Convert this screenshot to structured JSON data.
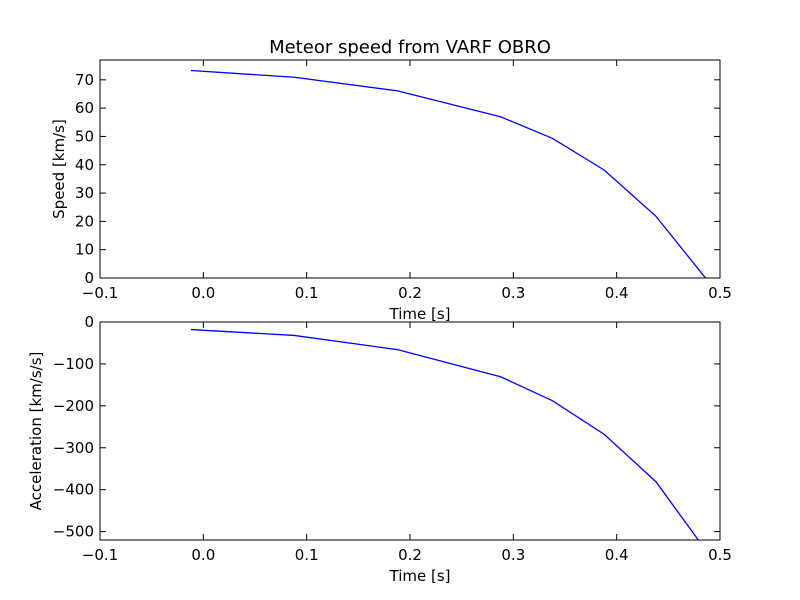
{
  "title": "Meteor speed from  VARF OBRO",
  "chart_data": [
    {
      "type": "line",
      "title": "Meteor speed from  VARF OBRO",
      "xlabel": "Time [s]",
      "ylabel": "Speed [km/s]",
      "xlim": [
        -0.1,
        0.5
      ],
      "ylim": [
        0,
        77
      ],
      "grid": false,
      "x_ticks": [
        "−0.1",
        "0.0",
        "0.1",
        "0.2",
        "0.3",
        "0.4",
        "0.5"
      ],
      "y_ticks": [
        "0",
        "10",
        "20",
        "30",
        "40",
        "50",
        "60",
        "70"
      ],
      "color": "#0000ff",
      "series": [
        {
          "x": [
            -0.012,
            0.088,
            0.188,
            0.288,
            0.338,
            0.388,
            0.438,
            0.486
          ],
          "y": [
            73.3,
            70.9,
            66.1,
            56.9,
            49.3,
            38.1,
            21.8,
            0
          ]
        }
      ]
    },
    {
      "type": "line",
      "title": "",
      "xlabel": "Time [s]",
      "ylabel": "Acceleration [km/s/s]",
      "xlim": [
        -0.1,
        0.5
      ],
      "ylim": [
        -520,
        0
      ],
      "grid": false,
      "x_ticks": [
        "−0.1",
        "0.0",
        "0.1",
        "0.2",
        "0.3",
        "0.4",
        "0.5"
      ],
      "y_ticks": [
        "0",
        "−100",
        "−200",
        "−300",
        "−400",
        "−500"
      ],
      "color": "#0000ff",
      "series": [
        {
          "x": [
            -0.012,
            0.088,
            0.188,
            0.288,
            0.338,
            0.388,
            0.438,
            0.479
          ],
          "y": [
            -18,
            -32,
            -66,
            -131,
            -188,
            -268,
            -381,
            -520
          ]
        }
      ]
    }
  ]
}
